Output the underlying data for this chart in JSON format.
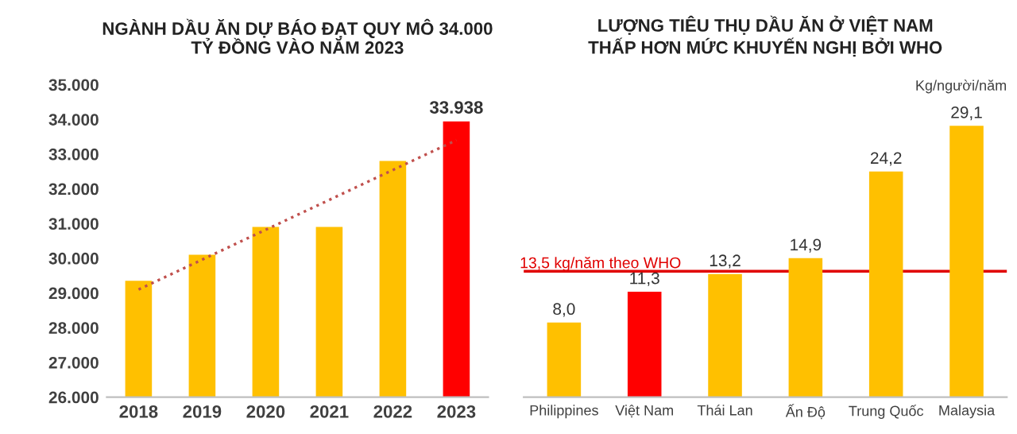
{
  "chart_data": [
    {
      "type": "bar",
      "title": "NGÀNH DẦU ĂN DỰ BÁO ĐẠT QUY MÔ 34.000\nTỶ ĐỒNG VÀO NĂM 2023",
      "categories": [
        "2018",
        "2019",
        "2020",
        "2021",
        "2022",
        "2023"
      ],
      "series": [
        {
          "colors": [
            "#ffc000",
            "#ffc000",
            "#ffc000",
            "#ffc000",
            "#ffc000",
            "#ff0000"
          ],
          "values": [
            29350,
            30100,
            30900,
            30900,
            32800,
            33938
          ],
          "value_labels": [
            null,
            null,
            null,
            null,
            null,
            "33.938"
          ]
        },
        {
          "type": "line",
          "color": "#c0504d",
          "line_style": "dotted",
          "values": [
            29100,
            29960,
            30820,
            31680,
            32540,
            33400
          ]
        }
      ],
      "ylim": [
        26000,
        35000
      ],
      "yticks": [
        {
          "value": 26000,
          "label": "26.000"
        },
        {
          "value": 27000,
          "label": "27.000"
        },
        {
          "value": 28000,
          "label": "28.000"
        },
        {
          "value": 29000,
          "label": "29.000"
        },
        {
          "value": 30000,
          "label": "30.000"
        },
        {
          "value": 31000,
          "label": "31.000"
        },
        {
          "value": 32000,
          "label": "32.000"
        },
        {
          "value": 33000,
          "label": "33.000"
        },
        {
          "value": 34000,
          "label": "34.000"
        },
        {
          "value": 35000,
          "label": "35.000"
        }
      ],
      "grid": false,
      "legend": false
    },
    {
      "type": "bar",
      "title": "LƯỢNG TIÊU THỤ DẦU ĂN Ở VIỆT NAM\nTHẤP HƠN MỨC KHUYẾN NGHỊ BỞI WHO",
      "ylabel": "Kg/người/năm",
      "categories": [
        "Philippines",
        "Việt Nam",
        "Thái Lan",
        "Ấn Độ",
        "Trung Quốc",
        "Malaysia"
      ],
      "series": [
        {
          "colors": [
            "#ffc000",
            "#ff0000",
            "#ffc000",
            "#ffc000",
            "#ffc000",
            "#ffc000"
          ],
          "values": [
            8.0,
            11.3,
            13.2,
            14.9,
            24.2,
            29.1
          ],
          "value_labels": [
            "8,0",
            "11,3",
            "13,2",
            "14,9",
            "24,2",
            "29,1"
          ]
        }
      ],
      "ref_lines": [
        {
          "axis": "y",
          "value": 13.5,
          "label": "13,5 kg/năm theo WHO",
          "color": "#e00000"
        }
      ],
      "tick_labels": "x",
      "grid": false,
      "legend": false
    }
  ]
}
